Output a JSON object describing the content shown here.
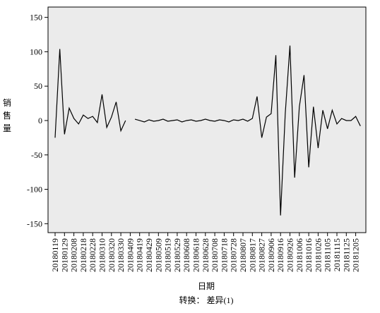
{
  "chart_data": {
    "type": "line",
    "x_label": "日期",
    "y_label": "销售量",
    "note": "转换： 差异(1)",
    "categories": [
      "20180119",
      null,
      "20180129",
      null,
      "20180208",
      null,
      "20180218",
      null,
      "20180228",
      null,
      "20180310",
      null,
      "20180320",
      null,
      "20180330",
      null,
      "20180409",
      null,
      "20180419",
      null,
      "20180429",
      null,
      "20180509",
      null,
      "20180519",
      null,
      "20180529",
      null,
      "20180608",
      null,
      "20180618",
      null,
      "20180628",
      null,
      "20180708",
      null,
      "20180718",
      null,
      "20180728",
      null,
      "20180807",
      null,
      "20180817",
      null,
      "20180827",
      null,
      "20180906",
      null,
      "20180916",
      null,
      "20180926",
      null,
      "20181006",
      null,
      "20181016",
      null,
      "20181026",
      null,
      "20181105",
      null,
      "20181115",
      null,
      "20181125",
      null,
      "20181205",
      null
    ],
    "series": [
      {
        "name": "差异(1)",
        "color": "#000000",
        "values": [
          -25,
          104,
          -20,
          18,
          3,
          -5,
          8,
          3,
          6,
          -3,
          38,
          -10,
          5,
          27,
          -15,
          0,
          null,
          2,
          0,
          -2,
          1,
          -1,
          0,
          2,
          -1,
          0,
          1,
          -2,
          0,
          1,
          -1,
          0,
          2,
          0,
          -1,
          1,
          0,
          -2,
          1,
          0,
          2,
          -1,
          3,
          35,
          -25,
          5,
          10,
          95,
          -138,
          10,
          109,
          -83,
          20,
          66,
          -68,
          20,
          -40,
          15,
          -12,
          15,
          -5,
          3,
          0,
          0,
          6,
          -8
        ]
      }
    ],
    "ylim": [
      -163,
      165
    ],
    "yticks": [
      -150,
      -100,
      -50,
      0,
      50,
      100,
      150
    ]
  }
}
